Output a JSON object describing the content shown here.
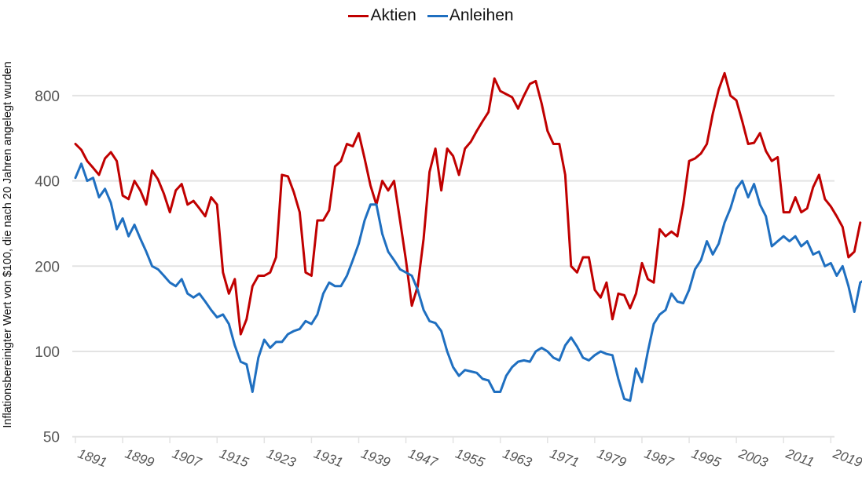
{
  "chart_data": {
    "type": "line",
    "title": "",
    "xlabel": "",
    "ylabel": "Inflationsbereinigter Wert von $100, die nach 20 Jahren angelegt wurden",
    "yscale": "log",
    "ylim": [
      50,
      1000
    ],
    "yticks": [
      50,
      100,
      200,
      400,
      800
    ],
    "xlim": [
      1891,
      2019
    ],
    "xticks": [
      1891,
      1899,
      1907,
      1915,
      1923,
      1931,
      1939,
      1947,
      1955,
      1963,
      1971,
      1979,
      1987,
      1995,
      2003,
      2011,
      2019
    ],
    "grid": "horizontal",
    "legend_position": "top-center",
    "x_start": 1891,
    "series": [
      {
        "name": "Aktien",
        "color": "#c00000",
        "values": [
          540,
          515,
          470,
          445,
          420,
          480,
          505,
          470,
          355,
          345,
          400,
          370,
          330,
          435,
          405,
          360,
          310,
          370,
          390,
          330,
          340,
          320,
          300,
          350,
          330,
          190,
          160,
          180,
          115,
          130,
          170,
          185,
          185,
          190,
          215,
          420,
          415,
          365,
          310,
          190,
          185,
          290,
          290,
          315,
          450,
          470,
          540,
          530,
          590,
          480,
          385,
          330,
          400,
          370,
          400,
          290,
          210,
          145,
          170,
          250,
          430,
          520,
          370,
          520,
          490,
          420,
          520,
          550,
          600,
          650,
          700,
          920,
          830,
          810,
          790,
          720,
          800,
          880,
          900,
          750,
          600,
          540,
          540,
          420,
          200,
          190,
          215,
          215,
          165,
          155,
          175,
          130,
          160,
          158,
          142,
          160,
          205,
          180,
          175,
          270,
          255,
          265,
          255,
          330,
          470,
          480,
          500,
          540,
          690,
          840,
          960,
          800,
          770,
          650,
          540,
          545,
          590,
          510,
          470,
          485,
          310,
          310,
          350,
          310,
          320,
          380,
          420,
          345,
          325,
          300,
          275,
          215,
          225,
          285
        ]
      },
      {
        "name": "Anleihen",
        "color": "#1f6fc0",
        "values": [
          410,
          460,
          400,
          410,
          350,
          375,
          335,
          270,
          295,
          255,
          280,
          250,
          225,
          200,
          195,
          185,
          175,
          170,
          180,
          160,
          155,
          160,
          150,
          140,
          132,
          135,
          125,
          105,
          92,
          90,
          72,
          95,
          110,
          103,
          108,
          108,
          115,
          118,
          120,
          128,
          125,
          135,
          160,
          175,
          170,
          170,
          185,
          210,
          240,
          290,
          330,
          330,
          260,
          225,
          210,
          195,
          190,
          185,
          165,
          140,
          128,
          126,
          118,
          100,
          88,
          82,
          86,
          85,
          84,
          80,
          79,
          72,
          72,
          82,
          88,
          92,
          93,
          92,
          100,
          103,
          100,
          95,
          93,
          105,
          112,
          104,
          95,
          93,
          97,
          100,
          98,
          97,
          80,
          68,
          67,
          87,
          78,
          100,
          125,
          135,
          140,
          160,
          150,
          148,
          165,
          195,
          210,
          245,
          220,
          240,
          285,
          320,
          375,
          400,
          350,
          390,
          330,
          300,
          235,
          245,
          255,
          245,
          255,
          235,
          245,
          220,
          225,
          200,
          205,
          185,
          200,
          170,
          138,
          175,
          180
        ]
      }
    ]
  },
  "legend": {
    "items": [
      {
        "label": "Aktien"
      },
      {
        "label": "Anleihen"
      }
    ]
  },
  "axis": {
    "ylabel": "Inflationsbereinigter Wert von $100, die nach 20 Jahren angelegt wurden"
  }
}
